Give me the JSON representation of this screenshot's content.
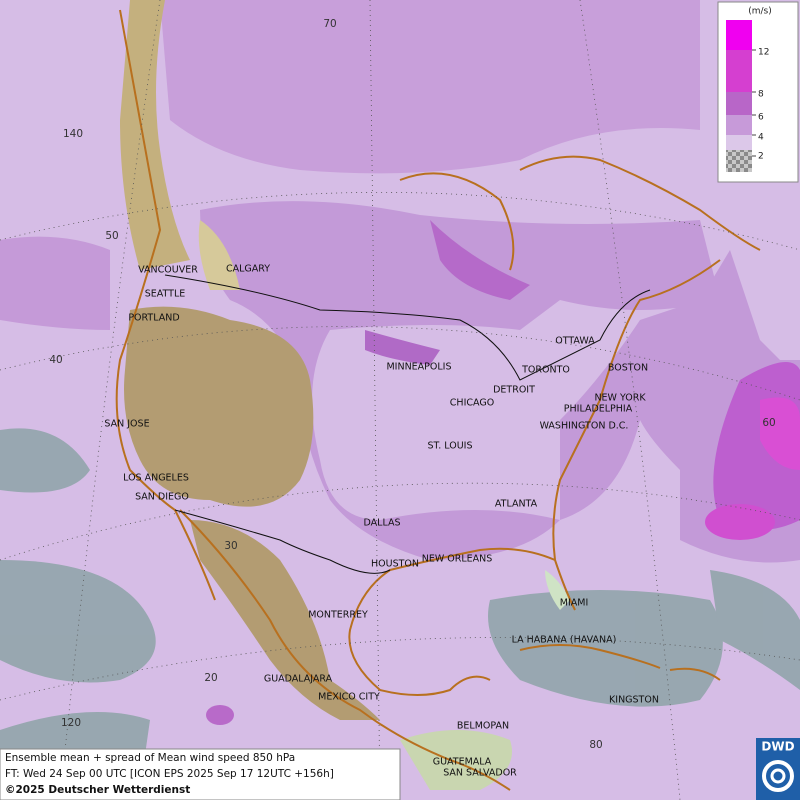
{
  "legend": {
    "unit": "(m/s)",
    "levels": [
      {
        "label": "12",
        "color": "#d53fd0"
      },
      {
        "label": "8",
        "color": "#b866c8"
      },
      {
        "label": "6",
        "color": "#c79ad9"
      },
      {
        "label": "4",
        "color": "#dcc8e9"
      },
      {
        "label": "2",
        "color": "#9a9a9a"
      }
    ],
    "top_color": "#f000f0"
  },
  "cities": [
    "VANCOUVER",
    "CALGARY",
    "SEATTLE",
    "PORTLAND",
    "SAN JOSE",
    "LOS ANGELES",
    "SAN DIEGO",
    "MINNEAPOLIS",
    "TORONTO",
    "OTTAWA",
    "BOSTON",
    "DETROIT",
    "CHICAGO",
    "NEW YORK",
    "PHILADELPHIA",
    "WASHINGTON D.C.",
    "ST. LOUIS",
    "ATLANTA",
    "DALLAS",
    "HOUSTON",
    "NEW ORLEANS",
    "MIAMI",
    "MONTERREY",
    "LA HABANA (HAVANA)",
    "GUADALAJARA",
    "MEXICO CITY",
    "KINGSTON",
    "BELMOPAN",
    "GUATEMALA",
    "SAN SALVADOR"
  ],
  "grid_labels": [
    "70",
    "140",
    "50",
    "40",
    "30",
    "20",
    "120",
    "80",
    "60"
  ],
  "caption": [
    "Ensemble mean + spread of Mean wind speed 850 hPa",
    "FT: Wed 24 Sep 00 UTC [ICON EPS 2025 Sep 17 12UTC +156h]",
    "©2025 Deutscher Wetterdienst"
  ],
  "logo": "DWD"
}
